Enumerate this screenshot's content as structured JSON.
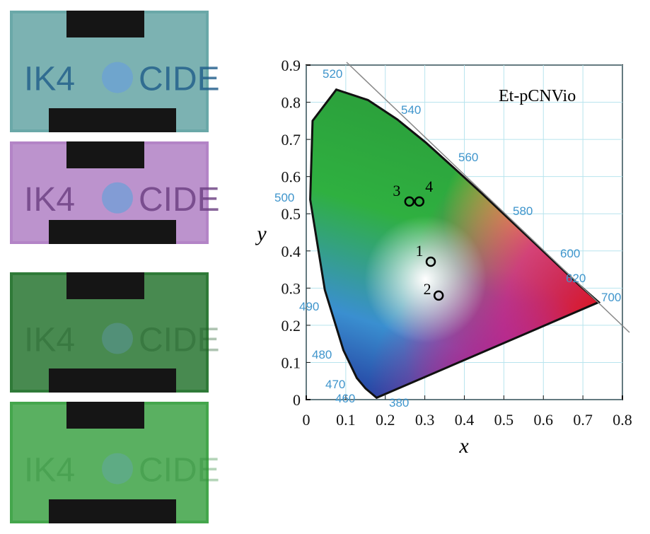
{
  "photos": [
    {
      "left": "IK4",
      "right": "CIDE"
    },
    {
      "left": "IK4",
      "right": "CIDE"
    },
    {
      "left": "IK4",
      "right": "CIDE"
    },
    {
      "left": "IK4",
      "right": "CIDE"
    }
  ],
  "chart_data": {
    "type": "scatter",
    "annotation": "Et-pCNVio",
    "xlabel": "x",
    "ylabel": "y",
    "x": [
      0.315,
      0.335,
      0.261,
      0.286
    ],
    "values": [
      0.371,
      0.28,
      0.533,
      0.533
    ],
    "point_labels": [
      "1",
      "2",
      "3",
      "4"
    ],
    "color": "#000000",
    "wavelengths": [
      520,
      540,
      560,
      580,
      600,
      620,
      700,
      500,
      490,
      480,
      470,
      460,
      380
    ],
    "xlim": [
      0,
      0.8
    ],
    "ylim": [
      0,
      0.9
    ],
    "xticks": [
      0,
      0.1,
      0.2,
      0.3,
      0.4,
      0.5,
      0.6,
      0.7,
      0.8
    ],
    "yticks": [
      0,
      0.1,
      0.2,
      0.3,
      0.4,
      0.5,
      0.6,
      0.7,
      0.8,
      0.9
    ],
    "grid": true
  }
}
